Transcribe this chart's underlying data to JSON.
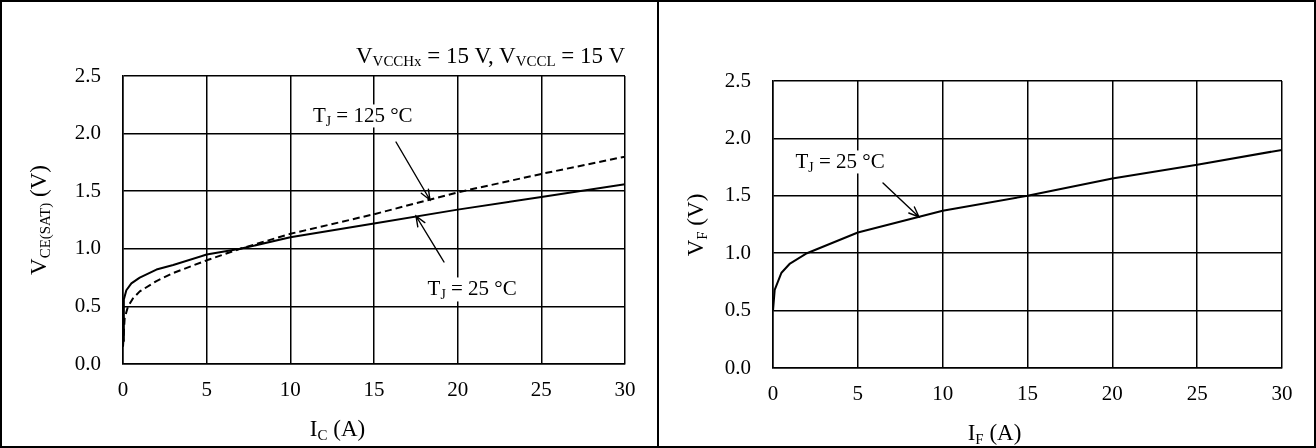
{
  "chart_data": [
    {
      "type": "line",
      "subtitle": "V$_{VCCHx}$ = 15 V, V$_{VCCL}$ = 15 V",
      "xlabel": "I$_{C}$ (A)",
      "ylabel": "V$_{CE(SAT)}$ (V)",
      "xlim": [
        0,
        30
      ],
      "xticks": [
        0,
        5,
        10,
        15,
        20,
        25,
        30
      ],
      "ylim": [
        0,
        2.5
      ],
      "yticks": [
        {
          "value": 0,
          "label": "0.0"
        },
        0.5,
        {
          "value": 1,
          "label": "1.0"
        },
        1.5,
        {
          "value": 2,
          "label": "2.0"
        },
        2.5
      ],
      "grid": true,
      "marker": "none",
      "series": [
        {
          "name": "T$_{J}$ = 25 °C",
          "color": "#000000",
          "line_style": "solid",
          "x": [
            0,
            0.05,
            0.2,
            0.5,
            1,
            2,
            3,
            5,
            7,
            10,
            15,
            20,
            25,
            30
          ],
          "values": [
            0.2,
            0.56,
            0.64,
            0.7,
            0.75,
            0.82,
            0.86,
            0.95,
            1.0,
            1.1,
            1.22,
            1.34,
            1.45,
            1.56
          ]
        },
        {
          "name": "T$_{J}$ = 125 °C",
          "color": "#000000",
          "line_style": "dashed",
          "x": [
            0,
            0.1,
            0.3,
            0.6,
            1,
            2,
            3,
            5,
            7,
            10,
            15,
            20,
            25,
            30
          ],
          "values": [
            0.15,
            0.4,
            0.5,
            0.57,
            0.63,
            0.72,
            0.79,
            0.9,
            1.0,
            1.13,
            1.3,
            1.49,
            1.65,
            1.8
          ]
        }
      ]
    },
    {
      "type": "line",
      "xlabel": "I$_{F}$ (A)",
      "ylabel": "V$_{F}$ (V)",
      "xlim": [
        0,
        30
      ],
      "xticks": [
        0,
        5,
        10,
        15,
        20,
        25,
        30
      ],
      "ylim": [
        0,
        2.5
      ],
      "yticks": [
        {
          "value": 0,
          "label": "0.0"
        },
        0.5,
        {
          "value": 1,
          "label": "1.0"
        },
        1.5,
        {
          "value": 2,
          "label": "2.0"
        },
        2.5
      ],
      "grid": true,
      "marker": "none",
      "series": [
        {
          "name": "T$_{J}$ = 25 °C",
          "color": "#000000",
          "line_style": "solid",
          "x": [
            0,
            0.1,
            0.5,
            1,
            2,
            5,
            10,
            15,
            20,
            25,
            30
          ],
          "values": [
            0.5,
            0.68,
            0.83,
            0.91,
            1.0,
            1.18,
            1.37,
            1.5,
            1.65,
            1.77,
            1.9
          ]
        }
      ]
    }
  ]
}
